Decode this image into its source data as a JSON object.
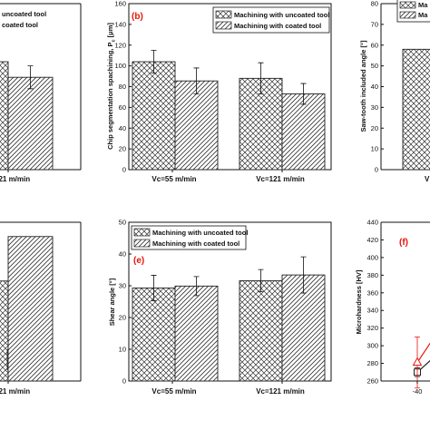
{
  "legend": {
    "uncoated": "Machining with uncoated tool",
    "coated": "Machining with coated tool",
    "uncoated_short": "uncoated tool",
    "coated_short": "coated tool",
    "uncoated_fragment": "Ma",
    "coated_fragment": "Ma"
  },
  "colors": {
    "axis": "#111111",
    "bar_fill": "#ffffff",
    "hatch": "#333333",
    "panel_label": "#e8150a",
    "series_line": "#222222",
    "marker_red": "#e8150a"
  },
  "chart_data": [
    {
      "id": "a",
      "type": "bar",
      "note": "cropped at left edge of image",
      "categories": [
        "",
        "Vc=121 m/min"
      ],
      "category_labels_visible": [
        "",
        "121 m/min"
      ],
      "series": [
        {
          "name": "Machining with uncoated tool",
          "values": [
            null,
            104
          ],
          "errors": [
            null,
            null
          ]
        },
        {
          "name": "Machining with coated tool",
          "values": [
            null,
            89
          ],
          "errors": [
            null,
            11
          ]
        }
      ],
      "ylim": [
        0,
        160
      ]
    },
    {
      "id": "b",
      "type": "bar",
      "panel_label": "(b)",
      "ylabel": "Chip segmentation spachining, P",
      "ylabel_sub": "c",
      "ylabel_unit": " [μm]",
      "categories": [
        "Vc=55 m/min",
        "Vc=121 m/min"
      ],
      "series": [
        {
          "name": "Machining with uncoated tool",
          "values": [
            104,
            88
          ],
          "errors": [
            11,
            15
          ]
        },
        {
          "name": "Machining with coated tool",
          "values": [
            85.5,
            73
          ],
          "errors": [
            12.5,
            10
          ]
        }
      ],
      "ylim": [
        0,
        160
      ],
      "yticks": [
        0,
        20,
        40,
        60,
        80,
        100,
        120,
        140,
        160
      ],
      "legend_position": "top-right"
    },
    {
      "id": "c",
      "type": "bar",
      "note": "cropped at right edge of image",
      "ylabel": "Saw-tooth included angle [°]",
      "categories": [
        "Vc=55 m/min"
      ],
      "category_labels_visible": [
        "V"
      ],
      "series": [
        {
          "name": "Machining with uncoated tool",
          "values": [
            58
          ]
        },
        {
          "name": "Machining with coated tool",
          "values": [
            null
          ]
        }
      ],
      "ylim": [
        0,
        80
      ],
      "yticks": [
        0,
        10,
        20,
        30,
        40,
        50,
        60,
        70,
        80
      ]
    },
    {
      "id": "d",
      "type": "bar",
      "note": "cropped at left edge of image",
      "categories": [
        "",
        "Vc=121 m/min"
      ],
      "category_labels_visible": [
        "",
        "121 m/min"
      ],
      "series": [
        {
          "name": "Machining with uncoated tool",
          "values": [
            null,
            31.5
          ]
        },
        {
          "name": "Machining with coated tool",
          "values": [
            null,
            45.5
          ]
        }
      ],
      "ylim": [
        0,
        50
      ]
    },
    {
      "id": "e",
      "type": "bar",
      "panel_label": "(e)",
      "ylabel": "Shear angle [°]",
      "categories": [
        "Vc=55 m/min",
        "Vc=121 m/min"
      ],
      "series": [
        {
          "name": "Machining with uncoated tool",
          "values": [
            29.3,
            31.6
          ],
          "errors": [
            4,
            3.5
          ]
        },
        {
          "name": "Machining with coated tool",
          "values": [
            29.9,
            33.4
          ],
          "errors": [
            3,
            5.7
          ]
        }
      ],
      "ylim": [
        0,
        50
      ],
      "yticks": [
        0,
        10,
        20,
        30,
        40,
        50
      ],
      "legend_position": "top-left"
    },
    {
      "id": "f",
      "type": "line",
      "panel_label": "(f)",
      "note": "cropped at right edge of image",
      "ylabel": "Microhardness [HV]",
      "xtick_labels_visible": [
        "-40"
      ],
      "series": [
        {
          "name": "uncoated",
          "marker": "square",
          "points": [
            [
              -40,
              270
            ]
          ],
          "errors": [
            5
          ]
        },
        {
          "name": "coated",
          "marker": "triangle",
          "points": [
            [
              -40,
              281
            ]
          ],
          "errors": [
            29
          ]
        }
      ],
      "ylim": [
        260,
        440
      ],
      "yticks": [
        260,
        280,
        300,
        320,
        340,
        360,
        380,
        400,
        420,
        440
      ]
    }
  ]
}
